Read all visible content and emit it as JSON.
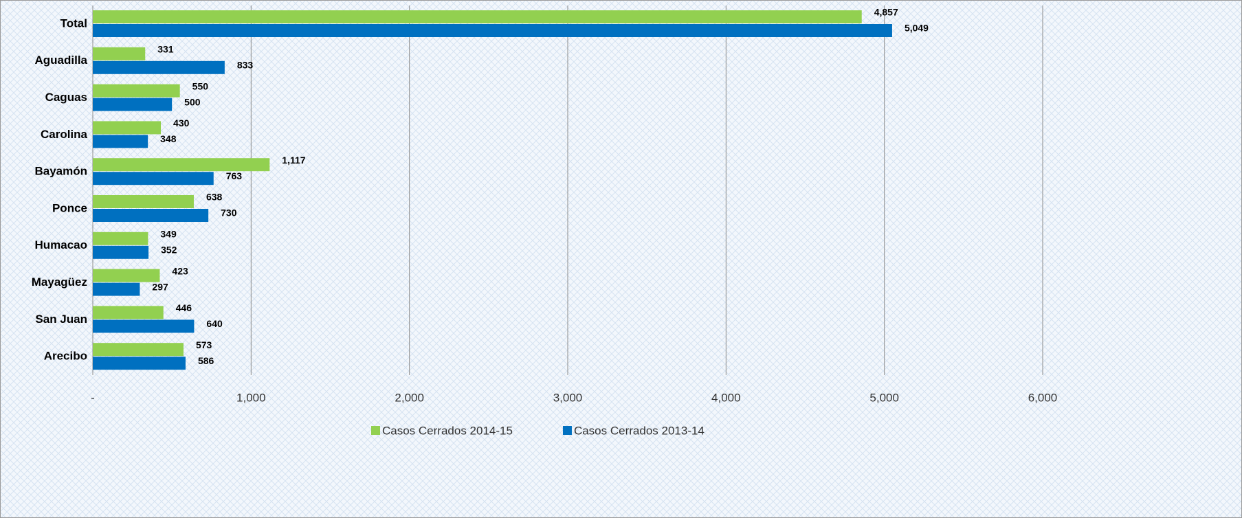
{
  "chart_data": {
    "type": "bar",
    "orientation": "horizontal",
    "categories": [
      "Total",
      "Aguadilla",
      "Caguas",
      "Carolina",
      "Bayamón",
      "Ponce",
      "Humacao",
      "Mayagüez",
      "San Juan",
      "Arecibo"
    ],
    "series": [
      {
        "name": "Casos Cerrados 2014-15",
        "color": "#92d050",
        "values": [
          4857,
          331,
          550,
          430,
          1117,
          638,
          349,
          423,
          446,
          573
        ],
        "value_labels": [
          "4,857",
          "331",
          "550",
          "430",
          "1,117",
          "638",
          "349",
          "423",
          "446",
          "573"
        ]
      },
      {
        "name": "Casos Cerrados 2013-14",
        "color": "#0070c0",
        "values": [
          5049,
          833,
          500,
          348,
          763,
          730,
          352,
          297,
          640,
          586
        ],
        "value_labels": [
          "5,049",
          "833",
          "500",
          "348",
          "763",
          "730",
          "352",
          "297",
          "640",
          "586"
        ]
      }
    ],
    "xlim": [
      0,
      6000
    ],
    "xticks": [
      {
        "value": 0,
        "label": "-"
      },
      {
        "value": 1000,
        "label": "1,000"
      },
      {
        "value": 2000,
        "label": "2,000"
      },
      {
        "value": 3000,
        "label": "3,000"
      },
      {
        "value": 4000,
        "label": "4,000"
      },
      {
        "value": 5000,
        "label": "5,000"
      },
      {
        "value": 6000,
        "label": "6,000"
      }
    ],
    "grid": true,
    "legend": "bottom"
  }
}
